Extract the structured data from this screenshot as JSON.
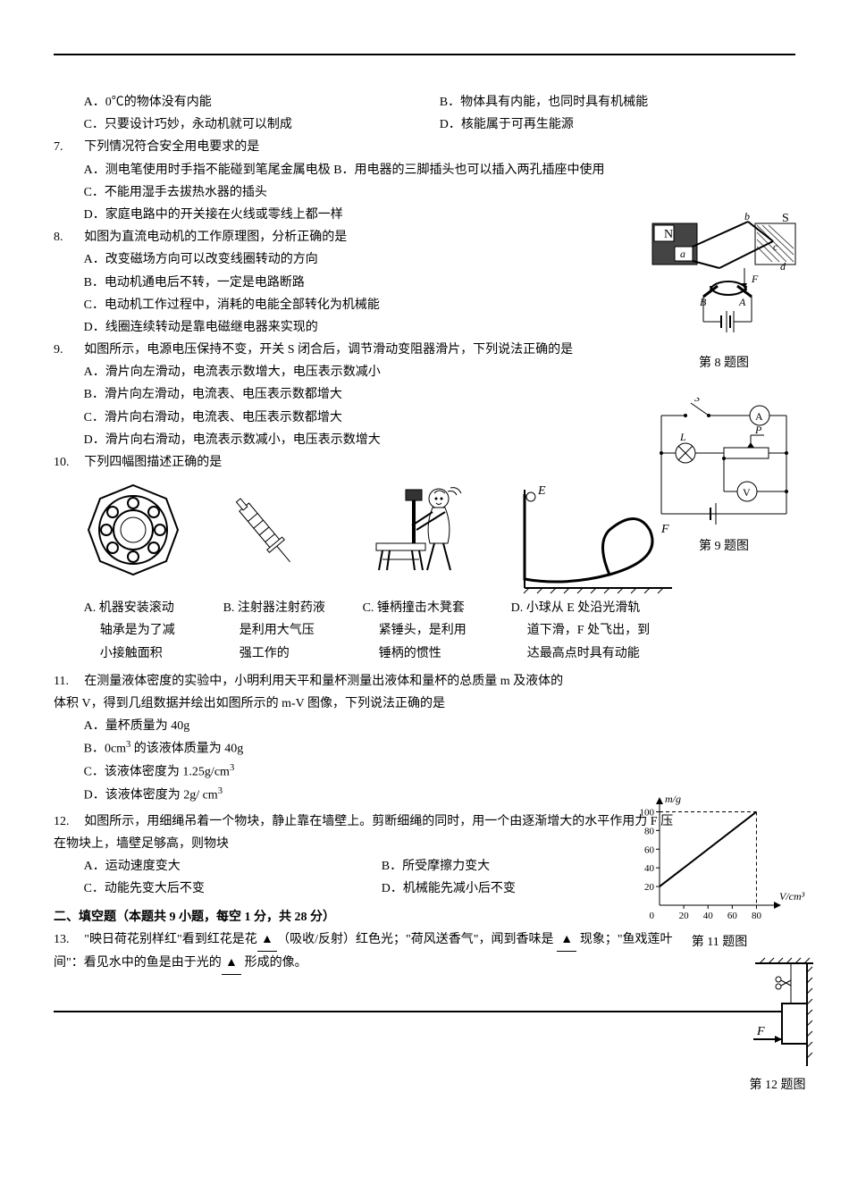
{
  "q6": {
    "A": "A．0℃的物体没有内能",
    "B": "B．物体具有内能，也同时具有机械能",
    "C": "C．只要设计巧妙，永动机就可以制成",
    "D": "D．核能属于可再生能源"
  },
  "q7": {
    "stem_num": "7.",
    "stem_text": "下列情况符合安全用电要求的是",
    "A": "A．测电笔使用时手指不能碰到笔尾金属电极",
    "B": "B．用电器的三脚插头也可以插入两孔插座中使用",
    "C": "C．不能用湿手去拔热水器的插头",
    "D": "D．家庭电路中的开关接在火线或零线上都一样"
  },
  "q8": {
    "stem_num": "8.",
    "stem_text": "如图为直流电动机的工作原理图，分析正确的是",
    "A": "A．改变磁场方向可以改变线圈转动的方向",
    "B": "B．电动机通电后不转，一定是电路断路",
    "C": "C．电动机工作过程中，消耗的电能全部转化为机械能",
    "D": "D．线圈连续转动是靠电磁继电器来实现的",
    "fig_label": "第 8 题图",
    "fig": {
      "N": "N",
      "S": "S",
      "a": "a",
      "b": "b",
      "c": "c",
      "d": "d",
      "A": "A",
      "B": "B",
      "F": "F"
    }
  },
  "q9": {
    "stem_num": "9.",
    "stem_text": "如图所示，电源电压保持不变，开关 S 闭合后，调节滑动变阻器滑片，下列说法正确的是",
    "A": "A．滑片向左滑动，电流表示数增大，电压表示数减小",
    "B": "B．滑片向左滑动，电流表、电压表示数都增大",
    "C": "C．滑片向右滑动，电流表、电压表示数都增大",
    "D": "D．滑片向右滑动，电流表示数减小，电压表示数增大",
    "fig_label": "第 9 题图",
    "fig": {
      "S": "S",
      "A": "A",
      "V": "V",
      "L": "L",
      "P": "P"
    }
  },
  "q10": {
    "stem_num": "10.",
    "stem_text": "下列四幅图描述正确的是",
    "A1": "A. 机器安装滚动",
    "A2": "轴承是为了减",
    "A3": "小接触面积",
    "B1": "B. 注射器注射药液",
    "B2": "是利用大气压",
    "B3": "强工作的",
    "C1": "C. 锤柄撞击木凳套",
    "C2": "紧锤头，是利用",
    "C3": "锤柄的惯性",
    "D1": "D. 小球从 E 处沿光滑轨",
    "D2": "道下滑，F 处飞出，到",
    "D3": "达最高点时具有动能",
    "figD": {
      "E": "E",
      "F": "F"
    }
  },
  "q11": {
    "stem_num": "11.",
    "stem_text": "在测量液体密度的实验中，小明利用天平和量杯测量出液体和量杯的总质量 m 及液体的体积 V，得到几组数据并绘出如图所示的 m-V 图像，下列说法正确的是",
    "A": "A．量杯质量为 40g",
    "B_pre": "B．",
    "B_body": "0cm",
    "B_sup": "3",
    "B_post": " 的该液体质量为 40g",
    "C_pre": "C．该液体密度为 1.25g/cm",
    "C_sup": "3",
    "D_pre": "D．该液体密度为 2g/ cm",
    "D_sup": "3",
    "fig_label": "第 11 题图",
    "chart": {
      "type": "line",
      "xlabel": "V/cm³",
      "ylabel": "m/g",
      "xlim": [
        0,
        90
      ],
      "ylim": [
        0,
        110
      ],
      "xticks": [
        20,
        40,
        60,
        80
      ],
      "yticks": [
        20,
        40,
        60,
        80,
        100
      ],
      "points": [
        [
          0,
          20
        ],
        [
          80,
          100
        ]
      ],
      "line_color": "#000000",
      "dash_guides": [
        [
          80,
          100
        ]
      ],
      "axis_color": "#000000",
      "tick_fontsize": 11,
      "label_fontsize": 12,
      "background": "#ffffff"
    }
  },
  "q12": {
    "stem_num": "12.",
    "stem_text": "如图所示，用细绳吊着一个物块，静止靠在墙壁上。剪断细绳的同时，用一个由逐渐增大的水平作用力 F 压在物块上，墙壁足够高，则物块",
    "A": "A．运动速度变大",
    "B": "B．所受摩擦力变大",
    "C": "C．动能先变大后不变",
    "D": "D．机械能先减小后不变",
    "fig_label": "第 12 题图",
    "fig": {
      "F": "F"
    }
  },
  "section2": "二、填空题（本题共 9 小题，每空 1 分，共 28 分）",
  "q13": {
    "stem_num": "13.",
    "part1a": "\"映日荷花别样红\"看到红花是花",
    "tri": "▲",
    "part1b": "（吸收/反射）红色光；\"荷风送香气\"，闻到香味是 ",
    "part2": " 现象；\"鱼戏莲叶间\"：看见水中的鱼是由于光的",
    "part3": " 形成的像。"
  }
}
